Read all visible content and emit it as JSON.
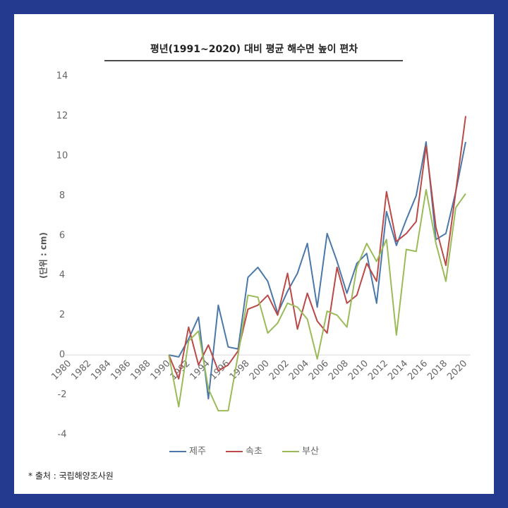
{
  "chart_data": {
    "type": "line",
    "title": "평년(1991~2020)  대비 평균 해수면 높이 편차",
    "y_label": "(단위 : cm)",
    "source": "* 출처 : 국립해양조사원",
    "categories": [
      "1980",
      null,
      "1982",
      null,
      "1984",
      null,
      "1986",
      null,
      "1988",
      null,
      "1990",
      null,
      "1992",
      null,
      "1994",
      null,
      "1996",
      null,
      "1998",
      null,
      "2000",
      null,
      "2002",
      null,
      "2004",
      null,
      "2006",
      null,
      "2008",
      null,
      "2010",
      null,
      "2012",
      null,
      "2014",
      null,
      "2016",
      null,
      "2018",
      null,
      "2020"
    ],
    "series": [
      {
        "name": "제주",
        "color": "#4a78a8",
        "values": [
          null,
          null,
          null,
          null,
          null,
          null,
          null,
          null,
          null,
          null,
          0,
          -0.1,
          0.8,
          1.9,
          -2.2,
          2.5,
          0.4,
          0.3,
          3.9,
          4.4,
          3.7,
          2.1,
          3.2,
          4.1,
          5.6,
          2.4,
          6.1,
          4.7,
          3.1,
          4.6,
          5.1,
          2.6,
          7.2,
          5.5,
          6.8,
          8.0,
          10.7,
          5.8,
          6.1,
          8.2,
          10.7
        ]
      },
      {
        "name": "속초",
        "color": "#b94a48",
        "values": [
          null,
          null,
          null,
          null,
          null,
          null,
          null,
          null,
          null,
          null,
          0,
          -1.2,
          1.4,
          -0.5,
          0.5,
          -0.8,
          -0.5,
          0.2,
          2.3,
          2.5,
          3.0,
          2.0,
          4.1,
          1.3,
          3.1,
          1.7,
          1.1,
          4.4,
          2.6,
          3.0,
          4.6,
          3.7,
          8.2,
          5.7,
          6.1,
          6.7,
          10.5,
          6.4,
          4.5,
          8.2,
          12.0
        ]
      },
      {
        "name": "부산",
        "color": "#9bbb59",
        "values": [
          null,
          null,
          null,
          null,
          null,
          null,
          null,
          null,
          null,
          null,
          0,
          -2.6,
          0.7,
          1.2,
          -1.7,
          -2.8,
          -2.8,
          0,
          3.0,
          2.9,
          1.1,
          1.6,
          2.6,
          2.4,
          1.8,
          -0.2,
          2.2,
          2.0,
          1.4,
          4.4,
          5.6,
          4.7,
          5.8,
          1.0,
          5.3,
          5.2,
          8.3,
          5.6,
          3.7,
          7.4,
          8.1
        ]
      }
    ],
    "ylim": [
      -4,
      14
    ],
    "yticks": [
      -4,
      -2,
      0,
      2,
      4,
      6,
      8,
      10,
      12,
      14
    ],
    "legend": "bottom"
  }
}
